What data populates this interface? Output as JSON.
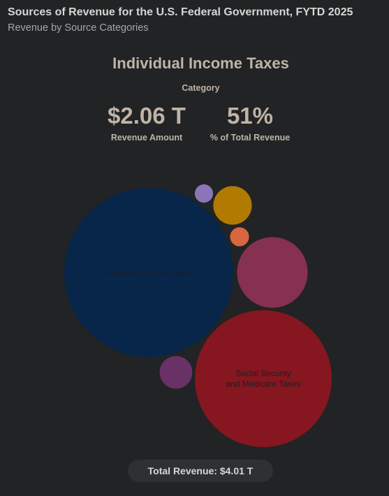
{
  "header": {
    "title": "Sources of Revenue for the U.S. Federal Government, FYTD 2025",
    "subtitle": "Revenue by Source Categories"
  },
  "detail": {
    "name": "Individual Income Taxes",
    "category_label": "Category",
    "amount": "$2.06 T",
    "amount_label": "Revenue Amount",
    "percent": "51%",
    "percent_label": "% of Total Revenue"
  },
  "total": {
    "label": "Total Revenue: $4.01 T"
  },
  "chart_data": {
    "type": "bubble",
    "series": [
      {
        "key": "individual",
        "label": "Individual Income Taxes",
        "label_lines": [
          "Individual Income Taxes"
        ],
        "value": 2.06,
        "color": "#07264a"
      },
      {
        "key": "social",
        "label": "Social Security and Medicare Taxes",
        "label_lines": [
          "Social Security",
          "and Medicare Taxes"
        ],
        "value": 1.35,
        "color": "#86161f"
      },
      {
        "key": "pink",
        "label": "",
        "label_lines": [],
        "value": 0.36,
        "color": "#85314f"
      },
      {
        "key": "gold",
        "label": "",
        "label_lines": [],
        "value": 0.107,
        "color": "#b07b00"
      },
      {
        "key": "purple",
        "label": "",
        "label_lines": [],
        "value": 0.077,
        "color": "#6a3167"
      },
      {
        "key": "orange",
        "label": "",
        "label_lines": [],
        "value": 0.026,
        "color": "#d8663f"
      },
      {
        "key": "lavender",
        "label": "",
        "label_lines": [],
        "value": 0.024,
        "color": "#8b75b8"
      }
    ],
    "label_color": "#1b1f26"
  }
}
